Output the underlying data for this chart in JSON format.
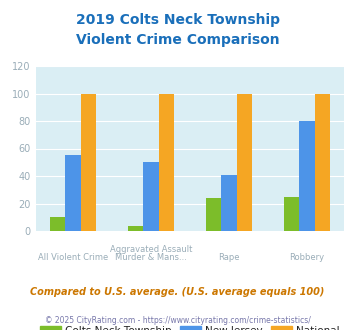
{
  "title_line1": "2019 Colts Neck Township",
  "title_line2": "Violent Crime Comparison",
  "cat_labels_line1": [
    "All Violent Crime",
    "Aggravated Assault",
    "Rape",
    "Robbery"
  ],
  "cat_labels_line2": [
    "",
    "Murder & Mans...",
    "",
    ""
  ],
  "colts_neck": [
    10,
    4,
    24,
    25
  ],
  "new_jersey": [
    55,
    50,
    41,
    80
  ],
  "national": [
    100,
    100,
    100,
    100
  ],
  "colors": {
    "colts_neck": "#7cbd2a",
    "new_jersey": "#4d94e8",
    "national": "#f5a623"
  },
  "ylim": [
    0,
    120
  ],
  "yticks": [
    0,
    20,
    40,
    60,
    80,
    100,
    120
  ],
  "plot_bg": "#daeef4",
  "title_color": "#1a6fba",
  "axis_label_color": "#9aadb8",
  "legend_label_color": "#222222",
  "subtitle_text": "Compared to U.S. average. (U.S. average equals 100)",
  "subtitle_color": "#cc7700",
  "footer_text": "© 2025 CityRating.com - https://www.cityrating.com/crime-statistics/",
  "footer_color": "#7777aa"
}
